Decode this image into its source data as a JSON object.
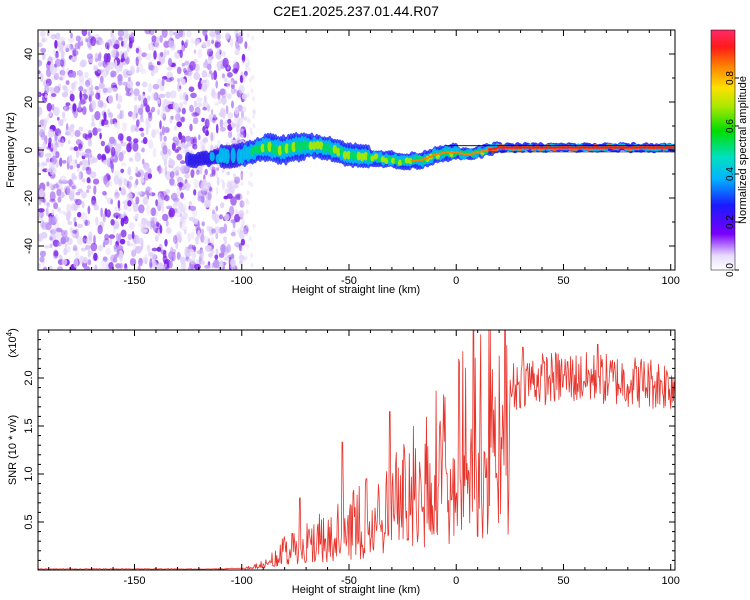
{
  "title": "C2E1.2025.237.01.44.R07",
  "chart_data": [
    {
      "type": "heatmap",
      "name": "spectrogram",
      "xlabel": "Height of straight line (km)",
      "ylabel": "Frequency (Hz)",
      "xlim": [
        -195,
        102
      ],
      "ylim": [
        -50,
        50
      ],
      "xticks": [
        -150,
        -100,
        -50,
        0,
        50,
        100
      ],
      "xtick_labels": [
        "-150",
        "-100",
        "-50",
        "0",
        "50",
        "100"
      ],
      "yticks": [
        -40,
        -20,
        0,
        20,
        40
      ],
      "ytick_labels": [
        "-40",
        "-20",
        "0",
        "20",
        "40"
      ],
      "noise_region_km": [
        -195,
        -100
      ],
      "signal_center_hz": [
        {
          "x": -120,
          "f": -4
        },
        {
          "x": -110,
          "f": -3
        },
        {
          "x": -100,
          "f": -2
        },
        {
          "x": -90,
          "f": 1
        },
        {
          "x": -80,
          "f": 0
        },
        {
          "x": -70,
          "f": 2
        },
        {
          "x": -60,
          "f": 1
        },
        {
          "x": -50,
          "f": -2
        },
        {
          "x": -40,
          "f": -3
        },
        {
          "x": -30,
          "f": -4
        },
        {
          "x": -25,
          "f": -5
        },
        {
          "x": -15,
          "f": -4
        },
        {
          "x": -10,
          "f": -2
        },
        {
          "x": -5,
          "f": -1
        },
        {
          "x": 0,
          "f": -1
        },
        {
          "x": 5,
          "f": -2
        },
        {
          "x": 10,
          "f": -1
        },
        {
          "x": 15,
          "f": 0
        },
        {
          "x": 20,
          "f": 1
        },
        {
          "x": 50,
          "f": 1
        },
        {
          "x": 100,
          "f": 1
        }
      ]
    },
    {
      "type": "colorbar",
      "label": "Normalized spectral amplitude",
      "range": [
        0,
        1
      ],
      "ticks": [
        "0.0",
        "0.2",
        "0.4",
        "0.6",
        "0.8"
      ],
      "tick_values": [
        0.0,
        0.2,
        0.4,
        0.6,
        0.8
      ]
    },
    {
      "type": "line",
      "name": "snr",
      "xlabel": "Height of straight line (km)",
      "ylabel": "SNR (10 * v/v)",
      "scale_label": "(x10",
      "scale_exp": "4",
      "scale_close": ")",
      "xlim": [
        -195,
        102
      ],
      "ylim": [
        0,
        2.5
      ],
      "xticks": [
        -150,
        -100,
        -50,
        0,
        50,
        100
      ],
      "xtick_labels": [
        "-150",
        "-100",
        "-50",
        "0",
        "50",
        "100"
      ],
      "yticks": [
        0.5,
        1.0,
        1.5,
        2.0
      ],
      "ytick_labels": [
        "0.5",
        "1.0",
        "1.5",
        "2.0"
      ],
      "color": "#e8332b",
      "envelope": [
        {
          "x": -195,
          "y": 0.01
        },
        {
          "x": -110,
          "y": 0.01
        },
        {
          "x": -100,
          "y": 0.02
        },
        {
          "x": -92,
          "y": 0.05
        },
        {
          "x": -85,
          "y": 0.15
        },
        {
          "x": -75,
          "y": 0.3
        },
        {
          "x": -65,
          "y": 0.38
        },
        {
          "x": -55,
          "y": 0.45
        },
        {
          "x": -45,
          "y": 0.55
        },
        {
          "x": -35,
          "y": 0.62
        },
        {
          "x": -25,
          "y": 0.85
        },
        {
          "x": -15,
          "y": 1.1
        },
        {
          "x": -5,
          "y": 1.3
        },
        {
          "x": 5,
          "y": 1.45
        },
        {
          "x": 15,
          "y": 1.65
        },
        {
          "x": 25,
          "y": 1.85
        },
        {
          "x": 32,
          "y": 1.95
        },
        {
          "x": 50,
          "y": 1.98
        },
        {
          "x": 75,
          "y": 1.95
        },
        {
          "x": 102,
          "y": 1.9
        }
      ],
      "spikes": [
        {
          "x": -73,
          "y": 0.75
        },
        {
          "x": -53,
          "y": 1.33
        },
        {
          "x": -42,
          "y": 0.95
        },
        {
          "x": -31,
          "y": 1.65
        },
        {
          "x": 8,
          "y": 2.5
        },
        {
          "x": 10,
          "y": 0.35
        },
        {
          "x": 31,
          "y": 2.32
        },
        {
          "x": 66,
          "y": 2.35
        }
      ]
    }
  ],
  "colors": {
    "axis": "#000000",
    "background": "#ffffff",
    "noise_low": "#e0d2f8",
    "noise_high": "#7a1ee8"
  }
}
